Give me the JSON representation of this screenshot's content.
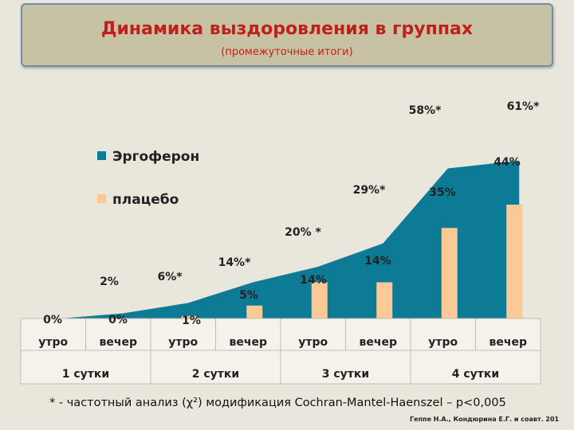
{
  "header": {
    "title": "Динамика выздоровления в группах",
    "subtitle": "(промежуточные итоги)"
  },
  "colors": {
    "ergoferon": "#0e7b96",
    "placebo": "#fac995",
    "title": "#c0201b"
  },
  "chart_data": {
    "type": "area",
    "ylim": [
      0,
      80
    ],
    "categories": [
      "утро",
      "вечер",
      "утро",
      "вечер",
      "утро",
      "вечер",
      "утро",
      "вечер"
    ],
    "groups": [
      "1 сутки",
      "2 сутки",
      "3 сутки",
      "4 сутки"
    ],
    "legend": {
      "placement": "top-left"
    },
    "series": [
      {
        "name": "Эргоферон",
        "type": "area",
        "values": [
          0,
          2,
          6,
          14,
          20,
          29,
          58,
          61
        ],
        "labels": [
          "0%",
          "2%",
          "6%*",
          "14%*",
          "20% *",
          "29%*",
          "58%*",
          "61%*"
        ]
      },
      {
        "name": "плацебо",
        "type": "bar",
        "values": [
          0,
          0,
          1,
          5,
          14,
          14,
          35,
          44
        ],
        "labels": [
          "",
          "0%",
          "1%",
          "5%",
          "14%",
          "14%",
          "35%",
          "44%"
        ]
      }
    ]
  },
  "footnote": "* - частотный анализ (χ²) модификация Cochran-Mantel-Haenszel – p<0,005",
  "credit": "Геппе Н.А., Кондюрина Е.Г. и соавт. 201"
}
